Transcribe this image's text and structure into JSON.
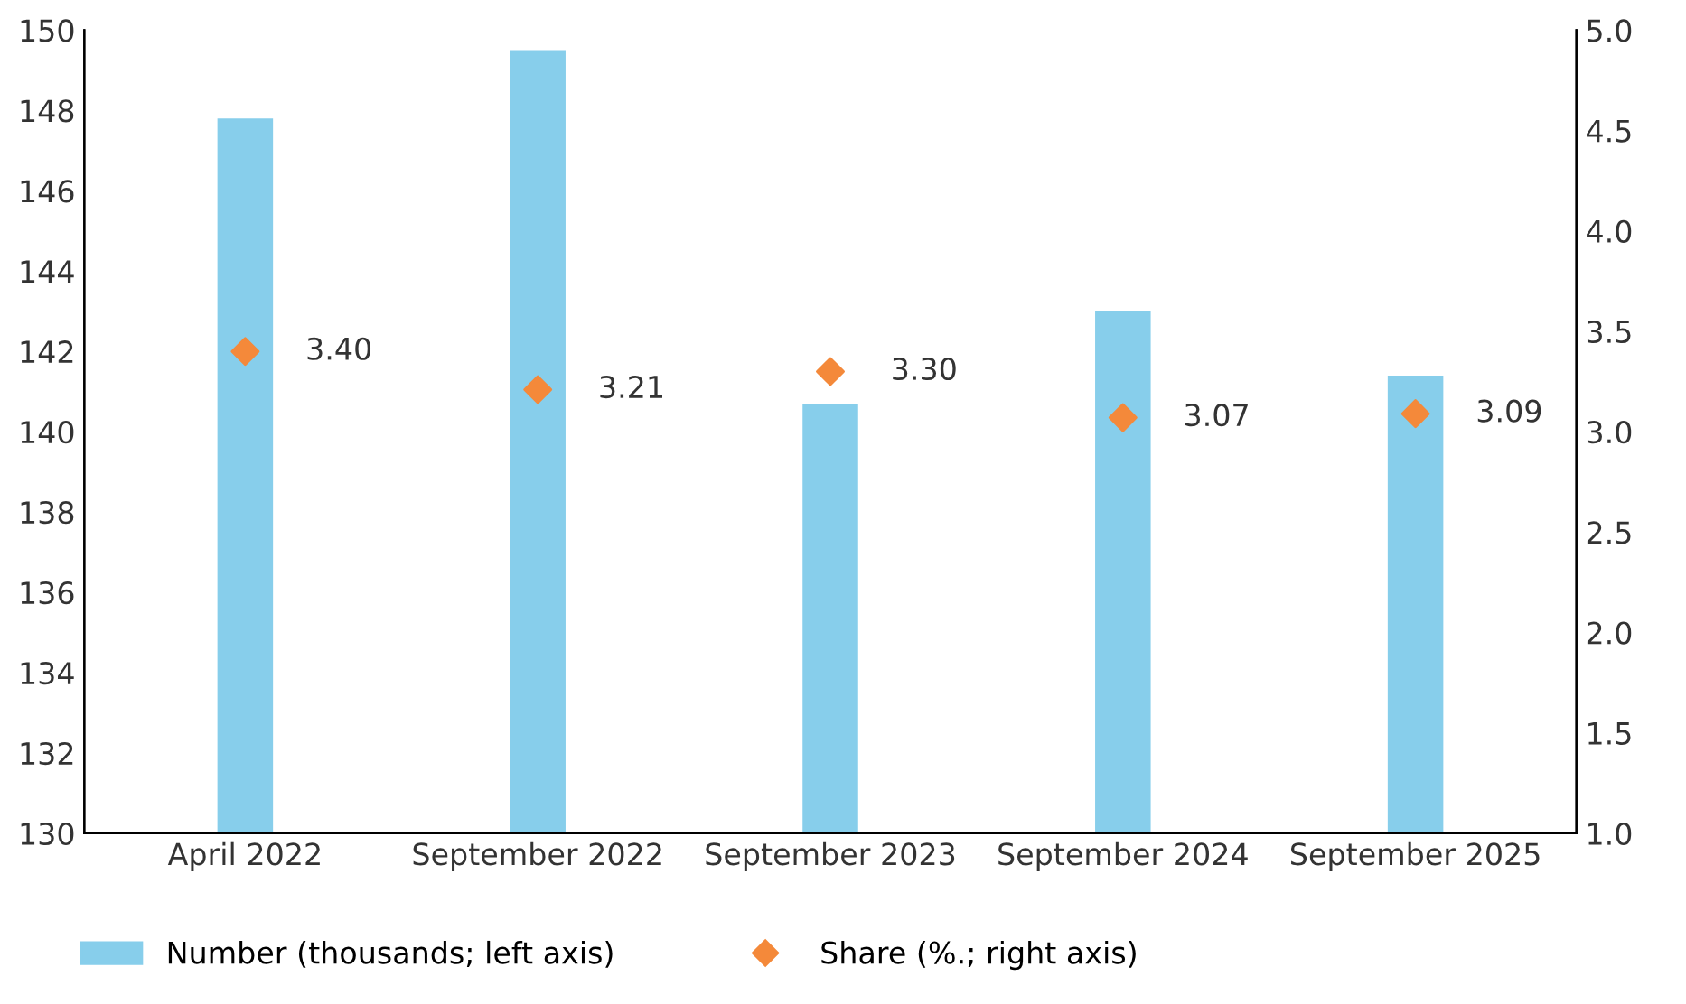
{
  "chart_data": {
    "type": "bar",
    "categories": [
      "April 2022",
      "September 2022",
      "September 2023",
      "September 2024",
      "September 2025"
    ],
    "series": [
      {
        "name": "Number (thousands; left axis)",
        "color": "#87ceeb",
        "values": [
          147.8,
          149.5,
          140.7,
          143.0,
          141.4
        ]
      },
      {
        "name": "Share (%.; right axis)",
        "type": "scatter",
        "axis": "y2",
        "marker": "diamond",
        "color": "#f4893a",
        "values": [
          3.4,
          3.21,
          3.3,
          3.07,
          3.09
        ],
        "value_labels": [
          "3.40",
          "3.21",
          "3.30",
          "3.07",
          "3.09"
        ]
      }
    ],
    "ylim": [
      130,
      150
    ],
    "yticks": [
      130,
      132,
      134,
      136,
      138,
      140,
      142,
      144,
      146,
      148,
      150
    ],
    "y2lim": [
      1.0,
      5.0
    ],
    "y2ticks": [
      {
        "value": 1.0,
        "label": "1.0"
      },
      {
        "value": 1.5,
        "label": "1.5"
      },
      {
        "value": 2.0,
        "label": "2.0"
      },
      {
        "value": 2.5,
        "label": "2.5"
      },
      {
        "value": 3.0,
        "label": "3.0"
      },
      {
        "value": 3.5,
        "label": "3.5"
      },
      {
        "value": 4.0,
        "label": "4.0"
      },
      {
        "value": 4.5,
        "label": "4.5"
      },
      {
        "value": 5.0,
        "label": "5.0"
      }
    ],
    "grid": false,
    "legend": "bottom left"
  }
}
